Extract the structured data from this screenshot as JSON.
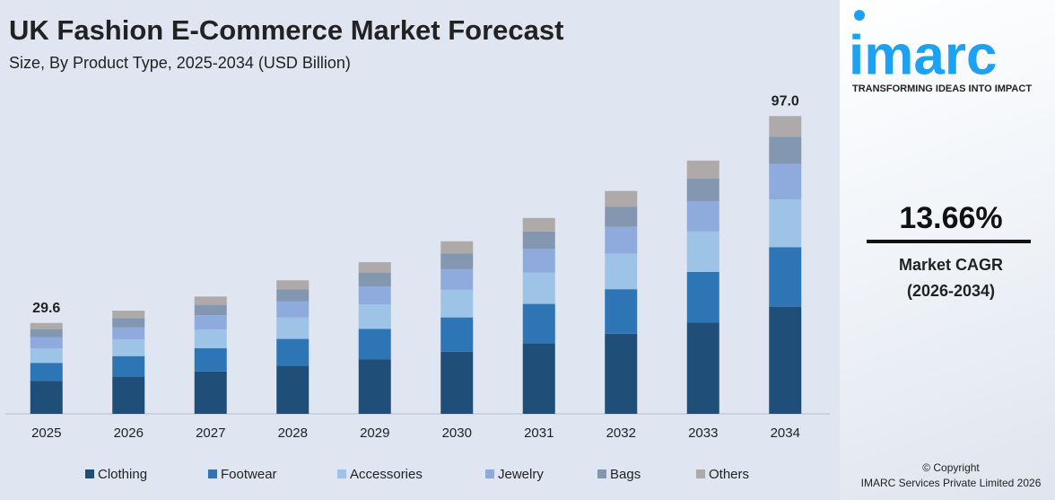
{
  "chart_data": {
    "type": "stacked-bar",
    "title": "UK Fashion E-Commerce Market Forecast",
    "subtitle": "Size, By Product Type, 2025-2034 (USD Billion)",
    "categories": [
      "2025",
      "2026",
      "2027",
      "2028",
      "2029",
      "2030",
      "2031",
      "2032",
      "2033",
      "2034"
    ],
    "series": [
      {
        "name": "Clothing",
        "color": "#1f4e79",
        "values": [
          10.7,
          12.1,
          13.8,
          15.7,
          17.8,
          20.2,
          23.0,
          26.1,
          29.7,
          34.9
        ]
      },
      {
        "name": "Footwear",
        "color": "#2e75b6",
        "values": [
          5.9,
          6.7,
          7.6,
          8.7,
          9.9,
          11.2,
          12.8,
          14.5,
          16.5,
          19.4
        ]
      },
      {
        "name": "Accessories",
        "color": "#9dc3e6",
        "values": [
          4.7,
          5.4,
          6.1,
          7.0,
          7.9,
          9.0,
          10.2,
          11.6,
          13.2,
          15.5
        ]
      },
      {
        "name": "Jewelry",
        "color": "#8faadc",
        "values": [
          3.6,
          4.0,
          4.6,
          5.2,
          5.9,
          6.7,
          7.7,
          8.7,
          9.9,
          11.6
        ]
      },
      {
        "name": "Bags",
        "color": "#8497b0",
        "values": [
          2.7,
          3.0,
          3.4,
          3.9,
          4.4,
          5.1,
          5.7,
          6.5,
          7.4,
          8.8
        ]
      },
      {
        "name": "Others",
        "color": "#aeaaaa",
        "values": [
          2.0,
          2.4,
          2.7,
          3.0,
          3.5,
          4.0,
          4.4,
          5.2,
          5.8,
          6.8
        ]
      }
    ],
    "annotations": [
      {
        "category": "2025",
        "value": 29.6,
        "label": "29.6"
      },
      {
        "category": "2034",
        "value": 97.0,
        "label": "97.0"
      }
    ],
    "ylim": [
      0,
      100
    ],
    "legend": "bottom"
  },
  "sidebar": {
    "logo": "imarc",
    "tagline": "TRANSFORMING IDEAS INTO IMPACT",
    "cagr": "13.66%",
    "cagr_label": "Market CAGR",
    "cagr_period": "(2026-2034)",
    "copyright": "© Copyright",
    "company": "IMARC Services Private Limited 2026"
  }
}
